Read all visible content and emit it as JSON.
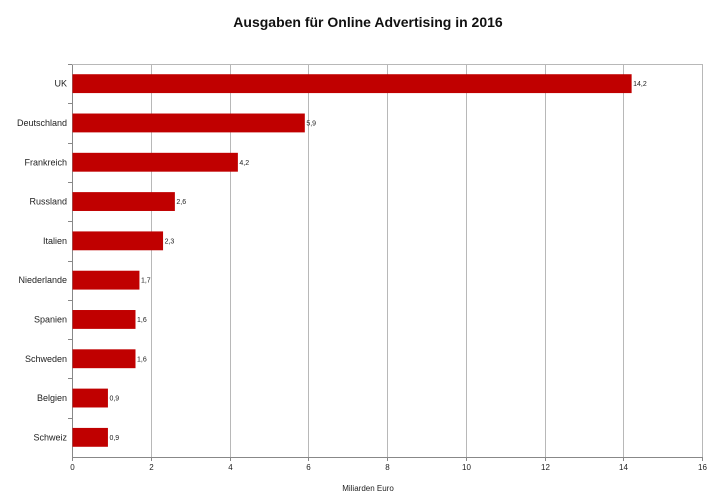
{
  "chart_data": {
    "type": "bar",
    "orientation": "horizontal",
    "title": "Ausgaben für Online Advertising in 2016",
    "xlabel": "Miliarden Euro",
    "ylabel": "",
    "xlim": [
      0,
      16
    ],
    "x_ticks": [
      "0",
      "2",
      "4",
      "6",
      "8",
      "10",
      "12",
      "14",
      "16"
    ],
    "grid": true,
    "bar_color": "#c00000",
    "categories": [
      "UK",
      "Deutschland",
      "Frankreich",
      "Russland",
      "Italien",
      "Niederlande",
      "Spanien",
      "Schweden",
      "Belgien",
      "Schweiz"
    ],
    "values": [
      14.2,
      5.9,
      4.2,
      2.6,
      2.3,
      1.7,
      1.6,
      1.6,
      0.9,
      0.9
    ],
    "value_labels": [
      "14,2",
      "5,9",
      "4,2",
      "2,6",
      "2,3",
      "1,7",
      "1,6",
      "1,6",
      "0,9",
      "0,9"
    ]
  }
}
